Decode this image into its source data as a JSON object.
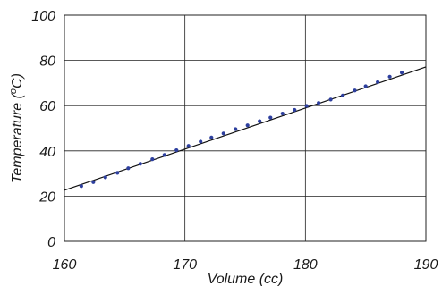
{
  "chart_data": {
    "type": "scatter",
    "title": "",
    "xlabel": "Volume (cc)",
    "ylabel_main": "Temperature (",
    "ylabel_sup": "o",
    "ylabel_tail": "C)",
    "xlim": [
      160,
      190
    ],
    "ylim": [
      0,
      100
    ],
    "x_ticks": [
      160,
      170,
      180,
      190
    ],
    "y_ticks": [
      0,
      20,
      40,
      60,
      80,
      100
    ],
    "grid": true,
    "legend": false,
    "colors": {
      "points": "#2d3f9e",
      "line": "#111111",
      "grid": "#222222"
    },
    "series": [
      {
        "values": [
          [
            161.4,
            24.4
          ],
          [
            162.4,
            26.2
          ],
          [
            163.4,
            28.3
          ],
          [
            164.4,
            30.3
          ],
          [
            165.3,
            32.3
          ],
          [
            166.3,
            34.3
          ],
          [
            167.3,
            36.3
          ],
          [
            168.3,
            38.2
          ],
          [
            169.3,
            40.3
          ],
          [
            170.3,
            42.2
          ],
          [
            171.3,
            44.1
          ],
          [
            172.2,
            45.9
          ],
          [
            173.2,
            47.7
          ],
          [
            174.2,
            49.6
          ],
          [
            175.2,
            51.3
          ],
          [
            176.2,
            53.1
          ],
          [
            177.1,
            54.7
          ],
          [
            178.1,
            56.5
          ],
          [
            179.1,
            58.1
          ],
          [
            180.1,
            59.9
          ],
          [
            181.1,
            61.2
          ],
          [
            182.1,
            62.7
          ],
          [
            183.1,
            64.5
          ],
          [
            184.1,
            66.7
          ],
          [
            185.0,
            68.6
          ],
          [
            186.0,
            70.4
          ],
          [
            187.0,
            72.8
          ],
          [
            188.0,
            74.6
          ]
        ]
      }
    ],
    "fit_line": {
      "x": [
        160,
        190
      ],
      "y": [
        22.6,
        77.1
      ]
    }
  }
}
